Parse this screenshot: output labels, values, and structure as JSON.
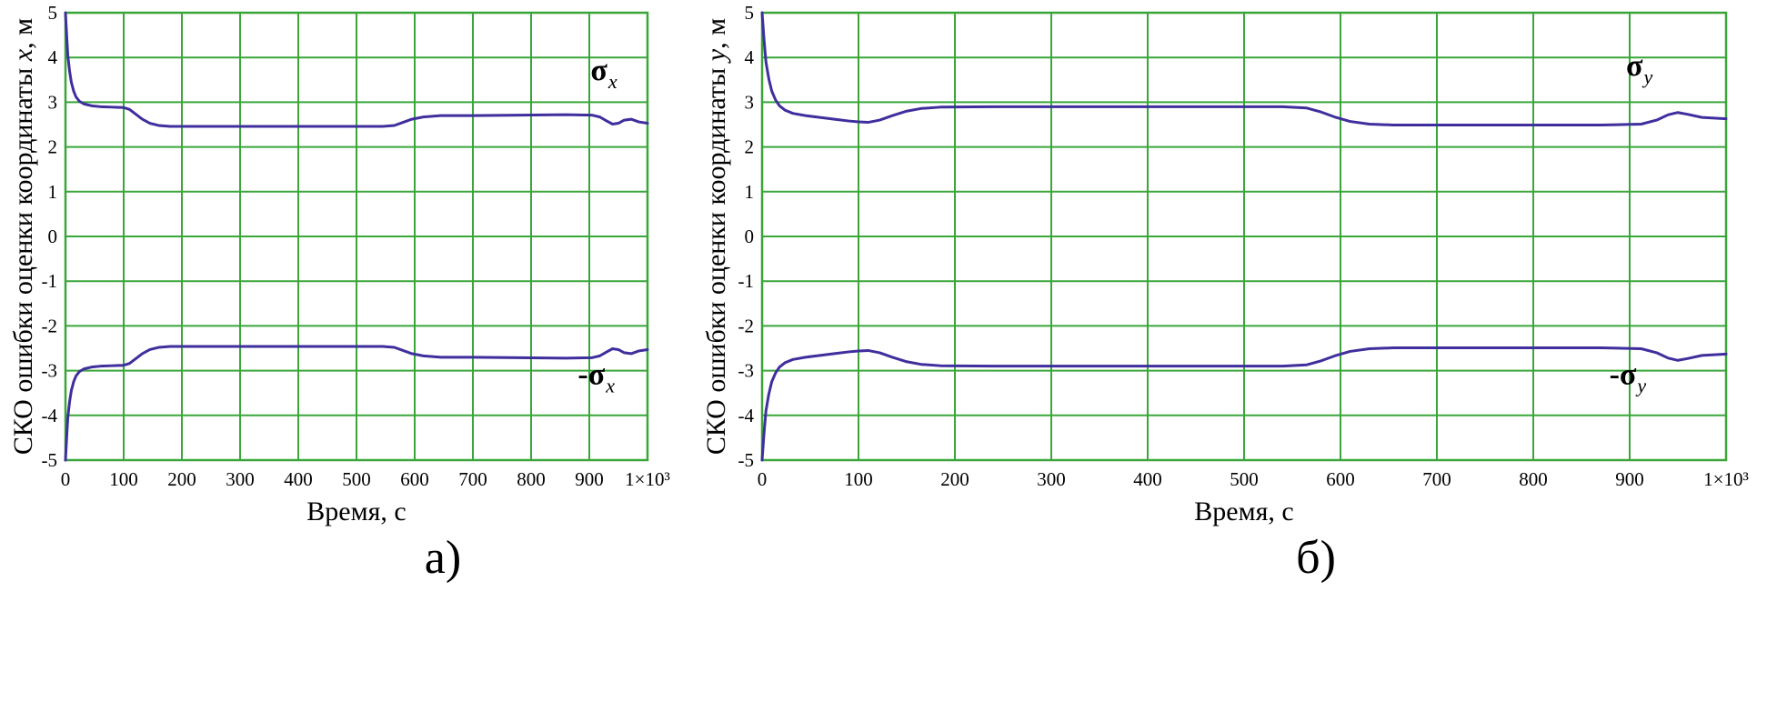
{
  "figure": {
    "background": "#ffffff",
    "grid_color": "#3aa63a",
    "curve_color": "#3e2f9d",
    "text_color": "#000000"
  },
  "chart_data": [
    {
      "type": "line",
      "caption": "а)",
      "xlabel": "Время, с",
      "ylabel": "СКО ошибки оценки координаты x, м",
      "ylabel_parts": {
        "prefix": "СКО ошибки оценки координаты ",
        "var": "x",
        "suffix": ", м"
      },
      "xlim": [
        0,
        1000
      ],
      "ylim": [
        -5,
        5
      ],
      "grid": true,
      "legend": "none",
      "x_ticks": [
        0,
        100,
        200,
        300,
        400,
        500,
        600,
        700,
        800,
        900,
        1000
      ],
      "x_tick_labels": [
        "0",
        "100",
        "200",
        "300",
        "400",
        "500",
        "600",
        "700",
        "800",
        "900",
        "1×10³"
      ],
      "y_ticks": [
        5,
        4,
        3,
        2,
        1,
        0,
        -1,
        -2,
        -3,
        -4,
        -5
      ],
      "y_tick_labels": [
        "5",
        "4",
        "3",
        "2",
        "1",
        "0",
        "-1",
        "-2",
        "-3",
        "-4",
        "-5"
      ],
      "series": [
        {
          "name": "sigma-x",
          "label": "σx",
          "x": [
            0,
            2,
            4,
            7,
            10,
            14,
            18,
            24,
            32,
            45,
            60,
            80,
            100,
            110,
            120,
            132,
            145,
            160,
            180,
            240,
            320,
            400,
            480,
            545,
            565,
            580,
            595,
            615,
            645,
            700,
            780,
            860,
            905,
            918,
            930,
            940,
            950,
            960,
            972,
            985,
            1000
          ],
          "y": [
            5.0,
            4.5,
            4.05,
            3.7,
            3.45,
            3.25,
            3.12,
            3.02,
            2.96,
            2.92,
            2.9,
            2.89,
            2.88,
            2.84,
            2.74,
            2.62,
            2.53,
            2.48,
            2.46,
            2.46,
            2.46,
            2.46,
            2.46,
            2.46,
            2.48,
            2.55,
            2.62,
            2.67,
            2.7,
            2.7,
            2.71,
            2.72,
            2.71,
            2.67,
            2.58,
            2.51,
            2.53,
            2.6,
            2.62,
            2.56,
            2.53
          ]
        },
        {
          "name": "minus-sigma-x",
          "label": "-σx",
          "x": [
            0,
            2,
            4,
            7,
            10,
            14,
            18,
            24,
            32,
            45,
            60,
            80,
            100,
            110,
            120,
            132,
            145,
            160,
            180,
            240,
            320,
            400,
            480,
            545,
            565,
            580,
            595,
            615,
            645,
            700,
            780,
            860,
            905,
            918,
            930,
            940,
            950,
            960,
            972,
            985,
            1000
          ],
          "y": [
            -5.0,
            -4.5,
            -4.05,
            -3.7,
            -3.45,
            -3.25,
            -3.12,
            -3.02,
            -2.96,
            -2.92,
            -2.9,
            -2.89,
            -2.88,
            -2.84,
            -2.74,
            -2.62,
            -2.53,
            -2.48,
            -2.46,
            -2.46,
            -2.46,
            -2.46,
            -2.46,
            -2.46,
            -2.48,
            -2.55,
            -2.62,
            -2.67,
            -2.7,
            -2.7,
            -2.71,
            -2.72,
            -2.71,
            -2.67,
            -2.58,
            -2.51,
            -2.53,
            -2.6,
            -2.62,
            -2.56,
            -2.53
          ]
        }
      ],
      "annotations": [
        {
          "name": "sigma-x-label",
          "text": "σ",
          "sub": "x",
          "x": 925,
          "y": 3.5
        },
        {
          "name": "minus-sigma-x-label",
          "text": "-σ",
          "sub": "x",
          "x": 912,
          "y": -3.3
        }
      ]
    },
    {
      "type": "line",
      "caption": "б)",
      "xlabel": "Время, с",
      "ylabel": "СКО ошибки оценки координаты y, м",
      "ylabel_parts": {
        "prefix": "СКО ошибки оценки координаты ",
        "var": "y",
        "suffix": ", м"
      },
      "xlim": [
        0,
        1000
      ],
      "ylim": [
        -5,
        5
      ],
      "grid": true,
      "legend": "none",
      "x_ticks": [
        0,
        100,
        200,
        300,
        400,
        500,
        600,
        700,
        800,
        900,
        1000
      ],
      "x_tick_labels": [
        "0",
        "100",
        "200",
        "300",
        "400",
        "500",
        "600",
        "700",
        "800",
        "900",
        "1×10³"
      ],
      "y_ticks": [
        5,
        4,
        3,
        2,
        1,
        0,
        -1,
        -2,
        -3,
        -4,
        -5
      ],
      "y_tick_labels": [
        "5",
        "4",
        "3",
        "2",
        "1",
        "0",
        "-1",
        "-2",
        "-3",
        "-4",
        "-5"
      ],
      "series": [
        {
          "name": "sigma-y",
          "label": "σy",
          "x": [
            0,
            2,
            4,
            7,
            10,
            14,
            18,
            24,
            32,
            45,
            60,
            75,
            90,
            100,
            110,
            122,
            135,
            150,
            165,
            185,
            240,
            340,
            440,
            540,
            565,
            580,
            594,
            610,
            630,
            655,
            700,
            790,
            870,
            912,
            928,
            940,
            950,
            960,
            975,
            1000
          ],
          "y": [
            5.0,
            4.4,
            3.9,
            3.52,
            3.25,
            3.05,
            2.92,
            2.82,
            2.75,
            2.7,
            2.66,
            2.62,
            2.58,
            2.56,
            2.55,
            2.6,
            2.7,
            2.8,
            2.86,
            2.89,
            2.9,
            2.9,
            2.9,
            2.9,
            2.87,
            2.78,
            2.67,
            2.57,
            2.51,
            2.49,
            2.49,
            2.49,
            2.49,
            2.51,
            2.6,
            2.72,
            2.77,
            2.73,
            2.66,
            2.63
          ]
        },
        {
          "name": "minus-sigma-y",
          "label": "-σy",
          "x": [
            0,
            2,
            4,
            7,
            10,
            14,
            18,
            24,
            32,
            45,
            60,
            75,
            90,
            100,
            110,
            122,
            135,
            150,
            165,
            185,
            240,
            340,
            440,
            540,
            565,
            580,
            594,
            610,
            630,
            655,
            700,
            790,
            870,
            912,
            928,
            940,
            950,
            960,
            975,
            1000
          ],
          "y": [
            -5.0,
            -4.4,
            -3.9,
            -3.52,
            -3.25,
            -3.05,
            -2.92,
            -2.82,
            -2.75,
            -2.7,
            -2.66,
            -2.62,
            -2.58,
            -2.56,
            -2.55,
            -2.6,
            -2.7,
            -2.8,
            -2.86,
            -2.89,
            -2.9,
            -2.9,
            -2.9,
            -2.9,
            -2.87,
            -2.78,
            -2.67,
            -2.57,
            -2.51,
            -2.49,
            -2.49,
            -2.49,
            -2.49,
            -2.51,
            -2.6,
            -2.72,
            -2.77,
            -2.73,
            -2.66,
            -2.63
          ]
        }
      ],
      "annotations": [
        {
          "name": "sigma-y-label",
          "text": "σ",
          "sub": "y",
          "x": 910,
          "y": 3.6
        },
        {
          "name": "minus-sigma-y-label",
          "text": "-σ",
          "sub": "y",
          "x": 898,
          "y": -3.3
        }
      ]
    }
  ]
}
